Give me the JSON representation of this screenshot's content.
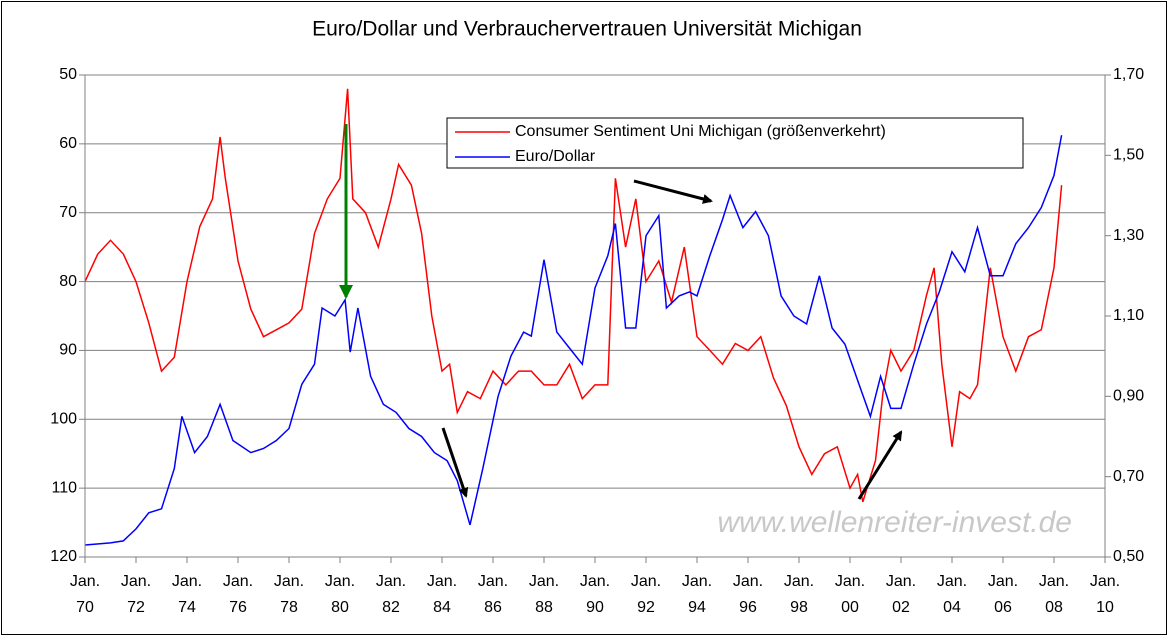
{
  "chart_data": {
    "type": "line",
    "title": "Euro/Dollar und Verbrauchervertrauen Universität Michigan",
    "watermark": "www.wellenreiter-invest.de",
    "ylim": [
      50,
      120
    ],
    "y_reversed": true,
    "yticks": [
      50,
      60,
      70,
      80,
      90,
      100,
      110,
      120
    ],
    "y2lim": [
      0.5,
      1.7
    ],
    "y2ticks": [
      {
        "value": 0.5,
        "label": "0,50"
      },
      {
        "value": 0.7,
        "label": "0,70"
      },
      {
        "value": 0.9,
        "label": "0,90"
      },
      {
        "value": 1.1,
        "label": "1,10"
      },
      {
        "value": 1.3,
        "label": "1,30"
      },
      {
        "value": 1.5,
        "label": "1,50"
      },
      {
        "value": 1.7,
        "label": "1,70"
      }
    ],
    "xlim": [
      1970,
      2010
    ],
    "xticks": [
      {
        "value": 1970,
        "label": [
          "Jan.",
          "70"
        ]
      },
      {
        "value": 1972,
        "label": [
          "Jan.",
          "72"
        ]
      },
      {
        "value": 1974,
        "label": [
          "Jan.",
          "74"
        ]
      },
      {
        "value": 1976,
        "label": [
          "Jan.",
          "76"
        ]
      },
      {
        "value": 1978,
        "label": [
          "Jan.",
          "78"
        ]
      },
      {
        "value": 1980,
        "label": [
          "Jan.",
          "80"
        ]
      },
      {
        "value": 1982,
        "label": [
          "Jan.",
          "82"
        ]
      },
      {
        "value": 1984,
        "label": [
          "Jan.",
          "84"
        ]
      },
      {
        "value": 1986,
        "label": [
          "Jan.",
          "86"
        ]
      },
      {
        "value": 1988,
        "label": [
          "Jan.",
          "88"
        ]
      },
      {
        "value": 1990,
        "label": [
          "Jan.",
          "90"
        ]
      },
      {
        "value": 1992,
        "label": [
          "Jan.",
          "92"
        ]
      },
      {
        "value": 1994,
        "label": [
          "Jan.",
          "94"
        ]
      },
      {
        "value": 1996,
        "label": [
          "Jan.",
          "96"
        ]
      },
      {
        "value": 1998,
        "label": [
          "Jan.",
          "98"
        ]
      },
      {
        "value": 2000,
        "label": [
          "Jan.",
          "00"
        ]
      },
      {
        "value": 2002,
        "label": [
          "Jan.",
          "02"
        ]
      },
      {
        "value": 2004,
        "label": [
          "Jan.",
          "04"
        ]
      },
      {
        "value": 2006,
        "label": [
          "Jan.",
          "06"
        ]
      },
      {
        "value": 2008,
        "label": [
          "Jan.",
          "08"
        ]
      },
      {
        "value": 2010,
        "label": [
          "Jan.",
          "10"
        ]
      }
    ],
    "grid": true,
    "legend": "top-center",
    "series": [
      {
        "name": "Consumer Sentiment Uni Michigan (größenverkehrt)",
        "color": "#ff0000",
        "x": [
          1970,
          1970.5,
          1971,
          1971.5,
          1972,
          1972.5,
          1973,
          1973.5,
          1974,
          1974.5,
          1975,
          1975.3,
          1975.5,
          1976,
          1976.5,
          1977,
          1977.5,
          1978,
          1978.5,
          1979,
          1979.5,
          1980,
          1980.3,
          1980.5,
          1981,
          1981.5,
          1982,
          1982.3,
          1982.8,
          1983.2,
          1983.6,
          1984,
          1984.3,
          1984.6,
          1985,
          1985.5,
          1986,
          1986.5,
          1987,
          1987.5,
          1988,
          1988.5,
          1989,
          1989.5,
          1990,
          1990.5,
          1990.8,
          1991.2,
          1991.6,
          1992,
          1992.5,
          1993,
          1993.5,
          1994,
          1994.5,
          1995,
          1995.5,
          1996,
          1996.5,
          1997,
          1997.5,
          1998,
          1998.5,
          1999,
          1999.5,
          2000,
          2000.3,
          2000.5,
          2001,
          2001.3,
          2001.6,
          2002,
          2002.5,
          2003,
          2003.3,
          2003.6,
          2004,
          2004.3,
          2004.7,
          2005,
          2005.5,
          2006,
          2006.5,
          2007,
          2007.5,
          2008,
          2008.3
        ],
        "values": [
          80,
          76,
          74,
          76,
          80,
          86,
          93,
          91,
          80,
          72,
          68,
          59,
          65,
          77,
          84,
          88,
          87,
          86,
          84,
          73,
          68,
          65,
          52,
          68,
          70,
          75,
          68,
          63,
          66,
          73,
          85,
          93,
          92,
          99,
          96,
          97,
          93,
          95,
          93,
          93,
          95,
          95,
          92,
          97,
          95,
          95,
          65,
          75,
          68,
          80,
          77,
          83,
          75,
          88,
          90,
          92,
          89,
          90,
          88,
          94,
          98,
          104,
          108,
          105,
          104,
          110,
          108,
          112,
          106,
          96,
          90,
          93,
          90,
          82,
          78,
          92,
          104,
          96,
          97,
          95,
          78,
          88,
          93,
          88,
          87,
          78,
          66
        ]
      },
      {
        "name": "Euro/Dollar",
        "color": "#0000ff",
        "axis": "y2",
        "x": [
          1970,
          1971,
          1971.5,
          1972,
          1972.5,
          1973,
          1973.5,
          1973.8,
          1974.3,
          1974.8,
          1975.3,
          1975.8,
          1976.5,
          1977,
          1977.5,
          1978,
          1978.5,
          1979,
          1979.3,
          1979.8,
          1980.2,
          1980.4,
          1980.7,
          1981.2,
          1981.7,
          1982.2,
          1982.7,
          1983.2,
          1983.7,
          1984.2,
          1984.6,
          1985.1,
          1985.6,
          1986.2,
          1986.7,
          1987.2,
          1987.5,
          1988,
          1988.5,
          1989,
          1989.5,
          1990,
          1990.5,
          1990.8,
          1991.2,
          1991.6,
          1992,
          1992.5,
          1992.8,
          1993.3,
          1993.7,
          1994,
          1994.5,
          1995,
          1995.3,
          1995.8,
          1996.3,
          1996.8,
          1997.3,
          1997.8,
          1998.3,
          1998.8,
          1999.3,
          1999.8,
          2000.3,
          2000.8,
          2001.2,
          2001.6,
          2002,
          2002.5,
          2003,
          2003.5,
          2004,
          2004.5,
          2005,
          2005.5,
          2006,
          2006.5,
          2007,
          2007.5,
          2008,
          2008.3
        ],
        "values": [
          0.53,
          0.535,
          0.54,
          0.57,
          0.61,
          0.62,
          0.72,
          0.85,
          0.76,
          0.8,
          0.88,
          0.79,
          0.76,
          0.77,
          0.79,
          0.82,
          0.93,
          0.98,
          1.12,
          1.1,
          1.14,
          1.01,
          1.12,
          0.95,
          0.88,
          0.86,
          0.82,
          0.8,
          0.76,
          0.74,
          0.69,
          0.58,
          0.72,
          0.9,
          1.0,
          1.06,
          1.05,
          1.24,
          1.06,
          1.02,
          0.98,
          1.17,
          1.25,
          1.33,
          1.07,
          1.07,
          1.3,
          1.35,
          1.12,
          1.15,
          1.16,
          1.15,
          1.25,
          1.34,
          1.4,
          1.32,
          1.36,
          1.3,
          1.15,
          1.1,
          1.08,
          1.2,
          1.07,
          1.03,
          0.94,
          0.85,
          0.95,
          0.87,
          0.87,
          0.98,
          1.08,
          1.16,
          1.26,
          1.21,
          1.32,
          1.2,
          1.2,
          1.28,
          1.32,
          1.37,
          1.45,
          1.55
        ]
      }
    ]
  }
}
